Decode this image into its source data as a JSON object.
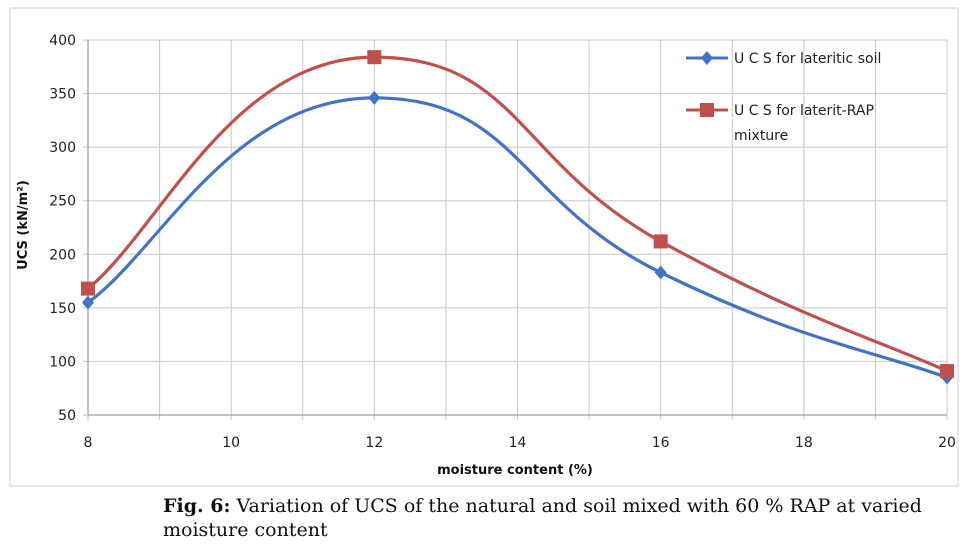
{
  "chart_data": {
    "type": "line",
    "xlabel": "moisture content (%)",
    "ylabel": "UCS (kN/m²)",
    "xlim": [
      8,
      20
    ],
    "ylim": [
      50,
      400
    ],
    "xticks": [
      8,
      10,
      12,
      14,
      16,
      18,
      20
    ],
    "yticks": [
      50,
      100,
      150,
      200,
      250,
      300,
      350,
      400
    ],
    "grid": true,
    "legend_position": "top-right",
    "smooth": true,
    "series": [
      {
        "name": "U C S for lateritic soil",
        "color": "#4472C4",
        "marker": "diamond",
        "x": [
          8,
          12,
          16,
          20
        ],
        "y": [
          155,
          346,
          183,
          85
        ]
      },
      {
        "name": "U C S for laterit-RAP mixture",
        "legend_lines": [
          "U C S for laterit-RAP",
          "mixture"
        ],
        "color": "#C0504D",
        "marker": "square",
        "x": [
          8,
          12,
          16,
          20
        ],
        "y": [
          168,
          384,
          212,
          91
        ]
      }
    ]
  },
  "caption": {
    "label": "Fig. 6:",
    "text": " Variation of UCS of the natural and soil mixed with 60 % RAP at varied moisture content"
  }
}
